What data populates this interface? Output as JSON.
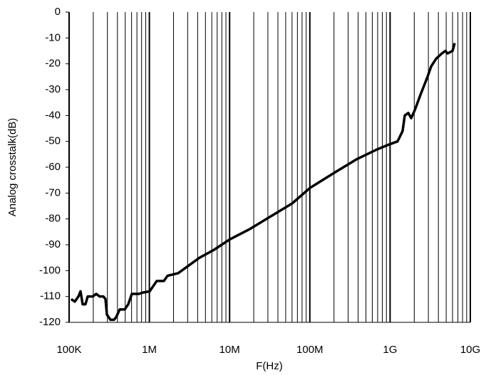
{
  "chart_data": {
    "type": "line",
    "x_label": "F(Hz)",
    "y_label": "Analog crosstalk(dB)",
    "log_x": true,
    "grid": true,
    "color": "#000000",
    "xlim": [
      100000,
      10000000000
    ],
    "xticks": [
      {
        "value": 100000,
        "label": "100K"
      },
      {
        "value": 1000000,
        "label": "1M"
      },
      {
        "value": 10000000,
        "label": "10M"
      },
      {
        "value": 100000000,
        "label": "100M"
      },
      {
        "value": 1000000000,
        "label": "1G"
      },
      {
        "value": 10000000000,
        "label": "10G"
      }
    ],
    "xminor_ticks": [
      200000,
      300000,
      400000,
      500000,
      600000,
      700000,
      800000,
      900000,
      2000000,
      3000000,
      4000000,
      5000000,
      6000000,
      7000000,
      8000000,
      9000000,
      20000000,
      30000000,
      40000000,
      50000000,
      60000000,
      70000000,
      80000000,
      90000000,
      200000000,
      300000000,
      400000000,
      500000000,
      600000000,
      700000000,
      800000000,
      900000000,
      2000000000,
      3000000000,
      4000000000,
      5000000000,
      6000000000,
      7000000000,
      8000000000,
      9000000000
    ],
    "ylim": [
      -120,
      0
    ],
    "yticks": [
      0,
      -10,
      -20,
      -30,
      -40,
      -50,
      -60,
      -70,
      -80,
      -90,
      -100,
      -110,
      -120
    ],
    "x": [
      106000,
      117800,
      130500,
      138700,
      147500,
      160000,
      170200,
      196400,
      217500,
      240900,
      266900,
      283800,
      295800,
      327400,
      362600,
      385500,
      427200,
      493000,
      545800,
      604600,
      741300,
      822200,
      1008000,
      1117000,
      1236000,
      1517000,
      1681000,
      2285000,
      2803000,
      3436000,
      4220000,
      6353000,
      9950000,
      17660000,
      32600000,
      60200000,
      100500000,
      205400000,
      379000000,
      700000000,
      1012000000,
      1241000000,
      1432000000,
      1524000000,
      1687000000,
      1832000000,
      2028000000,
      2390000000,
      2930000000,
      3250000000,
      3750000000,
      4420000000,
      4890000000,
      5200000000,
      6000000000,
      6380000000
    ],
    "values": [
      -111,
      -112,
      -110,
      -108,
      -113,
      -113,
      -110,
      -110,
      -109,
      -110,
      -110,
      -111,
      -117,
      -119,
      -119,
      -118,
      -115,
      -115,
      -113,
      -109,
      -109,
      -108.5,
      -108,
      -106,
      -104,
      -104,
      -102,
      -101,
      -99,
      -97,
      -95,
      -92,
      -88,
      -84,
      -79,
      -74,
      -68,
      -62,
      -57,
      -53,
      -51,
      -50,
      -46,
      -40,
      -39,
      -41,
      -38,
      -32,
      -25,
      -21,
      -18,
      -16,
      -15,
      -16,
      -15,
      -12
    ]
  }
}
